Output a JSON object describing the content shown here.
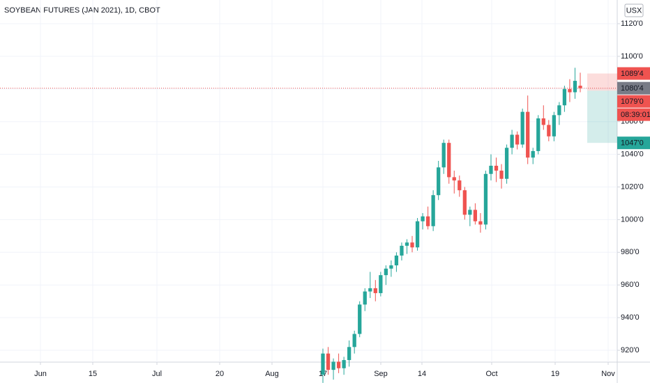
{
  "chart_data": {
    "type": "candlestick",
    "title": "SOYBEAN FUTURES (JAN 2021), 1D, CBOT",
    "currency": "USX",
    "up_color": "#26a69a",
    "down_color": "#ef5350",
    "open": [
      905,
      918,
      908,
      913,
      909,
      914,
      922,
      930,
      948,
      956,
      958,
      955,
      966,
      970,
      972,
      978,
      984,
      986,
      983,
      999,
      1002,
      996,
      1015,
      1032,
      1047,
      1026,
      1024,
      1018,
      1003,
      1006,
      999,
      997,
      1028,
      1033,
      1030,
      1025,
      1044,
      1052,
      1046,
      1066,
      1038,
      1042,
      1062,
      1058,
      1051,
      1064,
      1070,
      1080,
      1078,
      1082
    ],
    "high": [
      921,
      922,
      915,
      918,
      916,
      926,
      932,
      950,
      958,
      968,
      963,
      968,
      972,
      975,
      980,
      986,
      988,
      990,
      1001,
      1004,
      1008,
      1018,
      1036,
      1049,
      1049,
      1030,
      1027,
      1020,
      1008,
      1010,
      1004,
      1030,
      1040,
      1038,
      1034,
      1046,
      1055,
      1054,
      1068,
      1076,
      1044,
      1064,
      1070,
      1061,
      1066,
      1072,
      1082,
      1086,
      1093,
      1090
    ],
    "low": [
      900,
      905,
      902,
      906,
      905,
      910,
      918,
      928,
      944,
      952,
      950,
      953,
      960,
      965,
      968,
      975,
      979,
      980,
      981,
      994,
      994,
      993,
      1012,
      1028,
      1022,
      1016,
      1014,
      1000,
      996,
      997,
      992,
      994,
      1024,
      1023,
      1019,
      1022,
      1040,
      1043,
      1044,
      1034,
      1034,
      1040,
      1055,
      1048,
      1048,
      1058,
      1066,
      1072,
      1074,
      1078
    ],
    "close": [
      918,
      908,
      913,
      909,
      914,
      922,
      930,
      948,
      956,
      958,
      955,
      966,
      970,
      972,
      978,
      984,
      986,
      983,
      999,
      1002,
      996,
      1015,
      1032,
      1047,
      1026,
      1024,
      1018,
      1003,
      1006,
      999,
      997,
      1028,
      1033,
      1030,
      1025,
      1044,
      1052,
      1046,
      1066,
      1038,
      1042,
      1062,
      1058,
      1051,
      1064,
      1070,
      1080,
      1078,
      1085,
      1080.5
    ],
    "ylim": [
      912.75,
      1134.5
    ],
    "yticks": [
      {
        "value": 1120,
        "label": "1120'0"
      },
      {
        "value": 1100,
        "label": "1100'0"
      },
      {
        "value": 1080,
        "label": "1080'0"
      },
      {
        "value": 1060,
        "label": "1060'0"
      },
      {
        "value": 1040,
        "label": "1040'0"
      },
      {
        "value": 1020,
        "label": "1020'0"
      },
      {
        "value": 1000,
        "label": "1000'0"
      },
      {
        "value": 980,
        "label": "980'0"
      },
      {
        "value": 960,
        "label": "960'0"
      },
      {
        "value": 940,
        "label": "940'0"
      },
      {
        "value": 920,
        "label": "920'0"
      }
    ],
    "x_labels": [
      "Jun",
      "15",
      "Jul",
      "20",
      "Aug",
      "17",
      "Sep",
      "14",
      "Oct",
      "19",
      "Nov"
    ],
    "grid": true,
    "position": {
      "target": {
        "value": 1089.5,
        "label": "1089'4"
      },
      "entry": {
        "value": 1079,
        "label": "1079'0"
      },
      "stop": {
        "value": 1047,
        "label": "1047'0"
      }
    },
    "last_price": {
      "value": 1080.5,
      "label": "1080'4"
    },
    "countdown": "08:39:01"
  }
}
